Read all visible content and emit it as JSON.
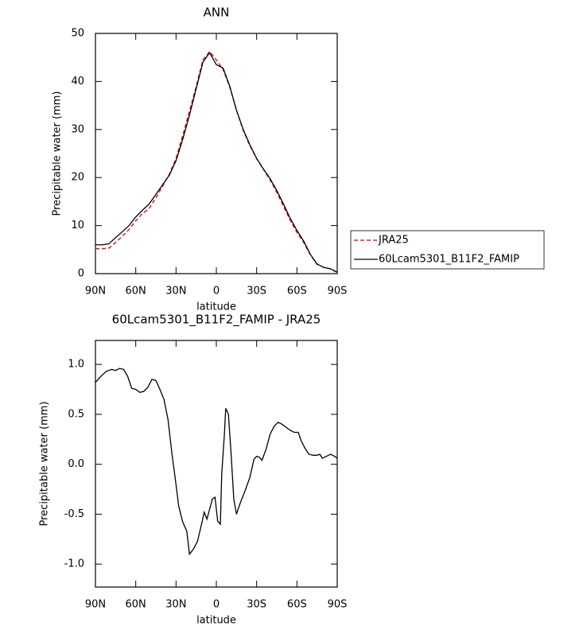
{
  "chart_data": [
    {
      "type": "line",
      "title": "ANN",
      "x_label": "latitude",
      "y_label": "Precipitable water (mm)",
      "x": [
        90,
        85,
        80,
        75,
        70,
        65,
        60,
        55,
        50,
        45,
        40,
        35,
        30,
        25,
        20,
        15,
        10,
        5,
        0,
        -5,
        -10,
        -15,
        -20,
        -25,
        -30,
        -35,
        -40,
        -45,
        -50,
        -55,
        -60,
        -65,
        -70,
        -75,
        -80,
        -85,
        -90
      ],
      "series": [
        {
          "name": "JRA25",
          "color": "#e00000",
          "dashed": true,
          "values": [
            5.2,
            5.2,
            5.3,
            6.5,
            7.8,
            9.2,
            11,
            12.5,
            13.6,
            15.8,
            18.2,
            20.7,
            24,
            28.8,
            33.8,
            39,
            44.5,
            46.2,
            44.5,
            42.5,
            38.8,
            34,
            29.8,
            26.6,
            23.9,
            21.7,
            19.5,
            16.9,
            14,
            11.1,
            8.6,
            6.5,
            3.9,
            1.9,
            1.3,
            1,
            0.2
          ]
        },
        {
          "name": "60Lcam5301_B11F2_FAMIP",
          "color": "#000000",
          "dashed": false,
          "values": [
            6,
            6,
            6.2,
            7.5,
            8.7,
            10,
            11.8,
            13.2,
            14.5,
            16.5,
            18.5,
            20.5,
            23.5,
            28,
            33,
            38.5,
            44,
            46,
            43.5,
            42.8,
            39,
            34,
            30,
            26.8,
            24,
            21.8,
            19.8,
            17.3,
            14.5,
            11.5,
            9,
            6.8,
            4,
            2,
            1.3,
            1,
            0.3
          ]
        }
      ],
      "xlim": [
        90,
        -90
      ],
      "xticks": [
        {
          "value": 90,
          "label": "90N"
        },
        {
          "value": 60,
          "label": "60N"
        },
        {
          "value": 30,
          "label": "30N"
        },
        0,
        {
          "value": -30,
          "label": "30S"
        },
        {
          "value": -60,
          "label": "60S"
        },
        {
          "value": -90,
          "label": "90S"
        }
      ],
      "ylim": [
        0,
        50
      ],
      "yticks": [
        0,
        10,
        20,
        30,
        40,
        50
      ],
      "legend": "right"
    },
    {
      "type": "line",
      "title": "60Lcam5301_B11F2_FAMIP - JRA25",
      "x_label": "latitude",
      "y_label": "Precipitable water (mm)",
      "x": [
        90,
        86,
        82,
        78,
        75,
        72,
        69,
        66,
        63,
        60,
        57,
        54,
        51,
        48,
        45,
        42,
        39,
        36,
        33,
        31,
        28,
        25,
        22,
        20,
        17,
        14,
        11,
        9,
        7,
        5,
        3,
        1,
        -1,
        -3,
        -4,
        -6,
        -7,
        -9,
        -11,
        -13,
        -15,
        -18,
        -21,
        -25,
        -28,
        -30,
        -32,
        -34,
        -37,
        -40,
        -43,
        -46,
        -49,
        -52,
        -55,
        -58,
        -61,
        -63,
        -66,
        -69,
        -72,
        -75,
        -77,
        -79,
        -82,
        -85,
        -88,
        -90
      ],
      "color": "#000000",
      "values": [
        0.82,
        0.88,
        0.93,
        0.95,
        0.94,
        0.96,
        0.95,
        0.88,
        0.76,
        0.75,
        0.72,
        0.73,
        0.77,
        0.85,
        0.84,
        0.75,
        0.65,
        0.45,
        0.1,
        -0.1,
        -0.42,
        -0.58,
        -0.67,
        -0.9,
        -0.85,
        -0.77,
        -0.6,
        -0.48,
        -0.55,
        -0.45,
        -0.35,
        -0.33,
        -0.57,
        -0.6,
        -0.1,
        0.3,
        0.56,
        0.5,
        0.1,
        -0.35,
        -0.5,
        -0.38,
        -0.28,
        -0.13,
        0.05,
        0.08,
        0.07,
        0.04,
        0.15,
        0.3,
        0.38,
        0.42,
        0.4,
        0.37,
        0.34,
        0.32,
        0.32,
        0.24,
        0.16,
        0.1,
        0.09,
        0.09,
        0.1,
        0.06,
        0.08,
        0.1,
        0.08,
        0.06
      ],
      "xlim": [
        90,
        -90
      ],
      "xticks": [
        {
          "value": 90,
          "label": "90N"
        },
        {
          "value": 60,
          "label": "60N"
        },
        {
          "value": 30,
          "label": "30N"
        },
        0,
        {
          "value": -30,
          "label": "30S"
        },
        {
          "value": -60,
          "label": "60S"
        },
        {
          "value": -90,
          "label": "90S"
        }
      ],
      "ylim": [
        -1.23,
        1.24
      ],
      "yticks": [
        {
          "value": -1,
          "label": "-1.0"
        },
        -0.5,
        {
          "value": 0,
          "label": "0.0"
        },
        0.5,
        {
          "value": 1,
          "label": "1.0"
        }
      ]
    }
  ]
}
